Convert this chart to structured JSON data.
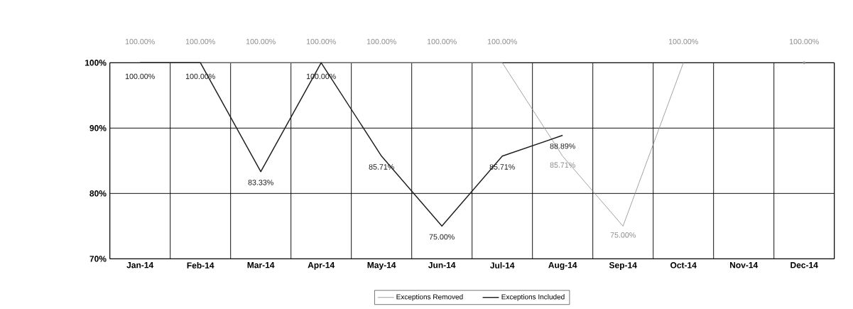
{
  "chart_data": {
    "type": "line",
    "categories": [
      "Jan-14",
      "Feb-14",
      "Mar-14",
      "Apr-14",
      "May-14",
      "Jun-14",
      "Jul-14",
      "Aug-14",
      "Sep-14",
      "Oct-14",
      "Nov-14",
      "Dec-14"
    ],
    "series": [
      {
        "name": "Exceptions Removed",
        "color": "#8c8c8c",
        "values": [
          100,
          100,
          100,
          100,
          100,
          100,
          100,
          85.71,
          75,
          100,
          null,
          100
        ],
        "value_labels": [
          "100.00%",
          "100.00%",
          "100.00%",
          "100.00%",
          "100.00%",
          "100.00%",
          "100.00%",
          "85.71%",
          "75.00%",
          "100.00%",
          null,
          "100.00%"
        ]
      },
      {
        "name": "Exceptions Included",
        "color": "#1e1e1e",
        "values": [
          100,
          100,
          83.33,
          100,
          85.71,
          75,
          85.71,
          88.89,
          null,
          null,
          null,
          null
        ],
        "value_labels": [
          "100.00%",
          "100.00%",
          "83.33%",
          "100.00%",
          "85.71%",
          "75.00%",
          "85.71%",
          "88.89%",
          null,
          null,
          null,
          null
        ]
      }
    ],
    "ylim": [
      70,
      100
    ],
    "yticks": [
      {
        "value": 70,
        "label": "70%"
      },
      {
        "value": 80,
        "label": "80%"
      },
      {
        "value": 90,
        "label": "90%"
      },
      {
        "value": 100,
        "label": "100%"
      }
    ],
    "grid": true,
    "legend": "bottom",
    "marker": "none",
    "line_style": "solid"
  }
}
